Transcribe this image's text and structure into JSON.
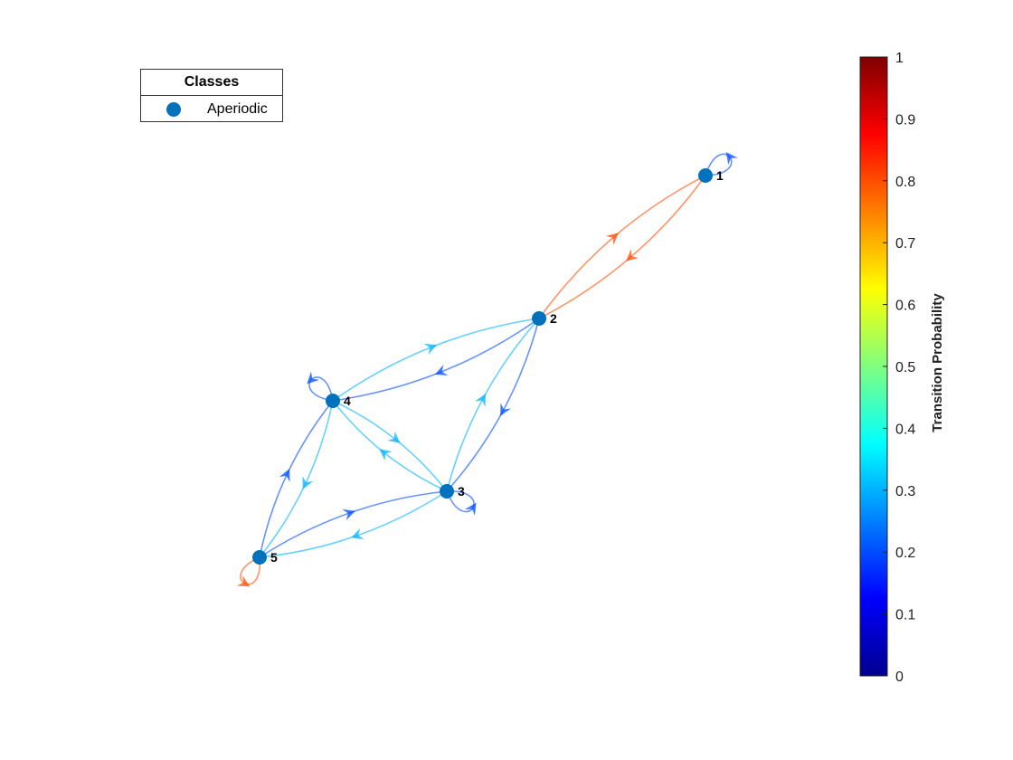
{
  "legend": {
    "title": "Classes",
    "entries": [
      {
        "label": "Aperiodic",
        "color": "#0072BD"
      }
    ]
  },
  "node_color": "#0072BD",
  "nodes": [
    {
      "id": "1",
      "label": "1"
    },
    {
      "id": "2",
      "label": "2"
    },
    {
      "id": "3",
      "label": "3"
    },
    {
      "id": "4",
      "label": "4"
    },
    {
      "id": "5",
      "label": "5"
    }
  ],
  "edges": [
    {
      "from": "1",
      "to": "1",
      "probability": 0.2
    },
    {
      "from": "1",
      "to": "2",
      "probability": 0.8
    },
    {
      "from": "2",
      "to": "1",
      "probability": 0.8
    },
    {
      "from": "2",
      "to": "3",
      "probability": 0.2
    },
    {
      "from": "3",
      "to": "2",
      "probability": 0.3
    },
    {
      "from": "2",
      "to": "4",
      "probability": 0.2
    },
    {
      "from": "4",
      "to": "2",
      "probability": 0.3
    },
    {
      "from": "4",
      "to": "4",
      "probability": 0.2
    },
    {
      "from": "4",
      "to": "3",
      "probability": 0.3
    },
    {
      "from": "3",
      "to": "4",
      "probability": 0.3
    },
    {
      "from": "4",
      "to": "5",
      "probability": 0.3
    },
    {
      "from": "5",
      "to": "4",
      "probability": 0.2
    },
    {
      "from": "3",
      "to": "3",
      "probability": 0.2
    },
    {
      "from": "3",
      "to": "5",
      "probability": 0.3
    },
    {
      "from": "5",
      "to": "3",
      "probability": 0.2
    },
    {
      "from": "5",
      "to": "5",
      "probability": 0.8
    }
  ],
  "colorbar": {
    "label": "Transition Probability",
    "ticks": [
      "0",
      "0.1",
      "0.2",
      "0.3",
      "0.4",
      "0.5",
      "0.6",
      "0.7",
      "0.8",
      "0.9",
      "1"
    ],
    "range": [
      0,
      1
    ],
    "colormap": "jet"
  }
}
